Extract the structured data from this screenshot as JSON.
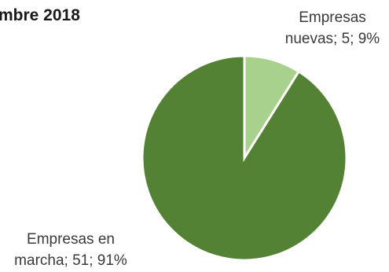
{
  "chart_data": {
    "type": "pie",
    "title": "mbre 2018",
    "slices": [
      {
        "category": "Empresas nuevas",
        "value": 5,
        "percent": "9%",
        "label_lines": [
          "Empresas",
          "nuevas; 5; 9%"
        ],
        "color": "#a9d18e"
      },
      {
        "category": "Empresas en marcha",
        "value": 51,
        "percent": "91%",
        "label_lines": [
          "Empresas en",
          "marcha; 51; 91%"
        ],
        "color": "#548235"
      }
    ]
  }
}
